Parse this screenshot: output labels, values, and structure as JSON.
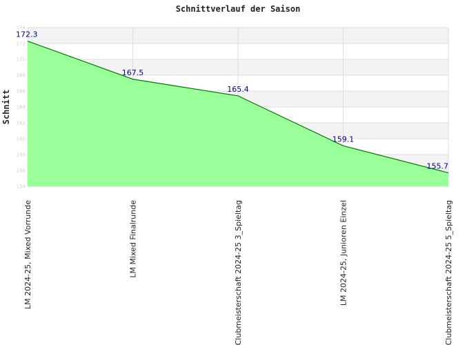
{
  "chart_data": {
    "type": "area",
    "title": "Schnittverlauf der Saison",
    "xlabel": "",
    "ylabel": "Schnitt",
    "ylim": [
      154,
      174
    ],
    "yticks": [
      154,
      156,
      158,
      160,
      162,
      164,
      166,
      168,
      170,
      172,
      174
    ],
    "grid": true,
    "categories": [
      "LM 2024-25, Mixed Vorrunde",
      "LM Mixed Finalrunde",
      "Clubmeisterschaft 2024-25   3_Spieltag",
      "LM 2024-25, Junioren Einzel",
      "Clubmeisterschaft 2024-25   5_Spieltag"
    ],
    "values": [
      172.3,
      167.5,
      165.4,
      159.1,
      155.7
    ],
    "colors": {
      "fill": "#99ff99",
      "line": "#007700",
      "band": "#f3f3f3",
      "grid": "#dddddd",
      "label": "#000088"
    }
  }
}
